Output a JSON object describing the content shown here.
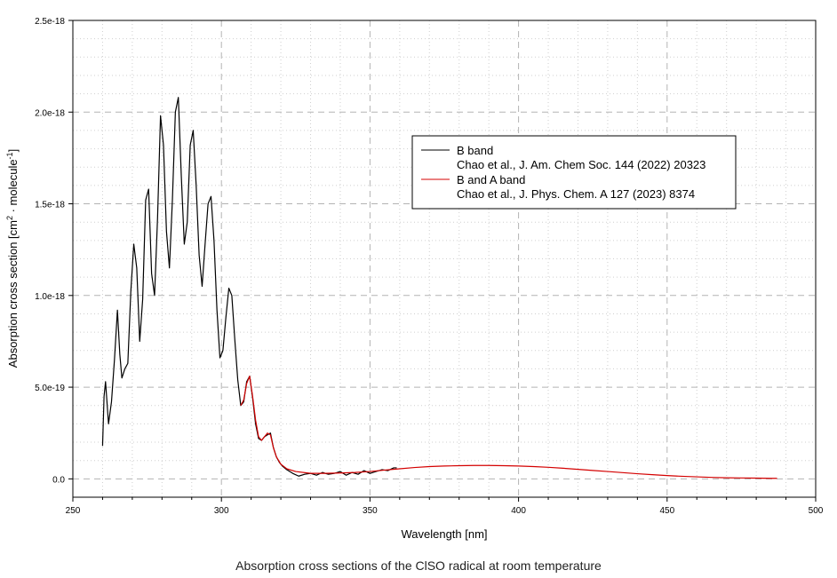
{
  "chart_data": {
    "type": "line",
    "title": "Absorption cross sections of the ClSO radical at room temperature",
    "xlabel": "Wavelength [nm]",
    "ylabel_parts": {
      "pre": "Absorption cross section [cm",
      "sup1": "2",
      "mid": " · molecule",
      "sup2": "-1",
      "post": "]"
    },
    "xlim": [
      250,
      500
    ],
    "ylim": [
      -1e-19,
      2.5e-18
    ],
    "x_ticks": [
      250,
      300,
      350,
      400,
      450,
      500
    ],
    "x_tick_labels": [
      "250",
      "300",
      "350",
      "400",
      "450",
      "500"
    ],
    "y_ticks": [
      0,
      5e-19,
      1e-18,
      1.5e-18,
      2e-18,
      2.5e-18
    ],
    "y_tick_labels": [
      "0.0",
      "5.0e-19",
      "1.0e-18",
      "1.5e-18",
      "2.0e-18",
      "2.5e-18"
    ],
    "grid": true,
    "legend_position": "upper-right",
    "series": [
      {
        "name": "B band",
        "reference": "Chao et al., J. Am. Chem Soc. 144 (2022) 20323",
        "color": "#000000",
        "x": [
          260,
          260.5,
          261,
          262,
          263,
          264,
          265,
          265.8,
          266.5,
          267.5,
          268.5,
          269.5,
          270.5,
          271.5,
          272.5,
          273.5,
          274.5,
          275.5,
          276.5,
          277.5,
          278.5,
          279.5,
          280.5,
          281.5,
          282.5,
          283.5,
          284.5,
          285.5,
          286.5,
          287.5,
          288.5,
          289.5,
          290.5,
          291.5,
          292.5,
          293.5,
          294.5,
          295.5,
          296.5,
          297.5,
          298.5,
          299.5,
          300.5,
          301.5,
          302.5,
          303.5,
          304.5,
          305.5,
          306.5,
          307.5,
          308.5,
          309.5,
          310.5,
          311.5,
          312.5,
          313.5,
          314.5,
          315.5,
          316.5,
          317.5,
          318.5,
          319.5,
          320.5,
          322,
          324,
          326,
          328,
          330,
          332,
          334,
          336,
          338,
          340,
          342,
          344,
          346,
          348,
          350,
          352,
          354,
          356,
          358,
          359
        ],
        "y": [
          1.8e-19,
          4.5e-19,
          5.3e-19,
          3e-19,
          4.2e-19,
          6.5e-19,
          9.2e-19,
          6.8e-19,
          5.5e-19,
          6e-19,
          6.3e-19,
          1.02e-18,
          1.28e-18,
          1.15e-18,
          7.5e-19,
          9.8e-19,
          1.52e-18,
          1.58e-18,
          1.12e-18,
          1e-18,
          1.42e-18,
          1.98e-18,
          1.82e-18,
          1.35e-18,
          1.15e-18,
          1.52e-18,
          2e-18,
          2.08e-18,
          1.65e-18,
          1.28e-18,
          1.4e-18,
          1.82e-18,
          1.9e-18,
          1.6e-18,
          1.22e-18,
          1.05e-18,
          1.28e-18,
          1.5e-18,
          1.54e-18,
          1.3e-18,
          9.2e-19,
          6.6e-19,
          7e-19,
          8.8e-19,
          1.04e-18,
          1e-18,
          7.6e-19,
          5.4e-19,
          4e-19,
          4.2e-19,
          5.3e-19,
          5.6e-19,
          4.4e-19,
          3e-19,
          2.2e-19,
          2.1e-19,
          2.3e-19,
          2.4e-19,
          2.5e-19,
          1.7e-19,
          1.2e-19,
          9e-20,
          7e-20,
          5e-20,
          3e-20,
          1.5e-20,
          2.5e-20,
          3e-20,
          2e-20,
          3.5e-20,
          2.5e-20,
          3e-20,
          4e-20,
          2e-20,
          3.5e-20,
          2.5e-20,
          4.5e-20,
          3e-20,
          4e-20,
          5e-20,
          4.5e-20,
          6e-20,
          6e-20
        ]
      },
      {
        "name": "B and A band",
        "reference": "Chao et al., J. Phys. Chem. A 127 (2023) 8374",
        "color": "#d40000",
        "x": [
          306.5,
          307.5,
          308.5,
          309.5,
          310.5,
          311.5,
          312.5,
          313.5,
          314.5,
          315.5,
          316.5,
          317.5,
          318.5,
          320,
          322,
          325,
          330,
          335,
          340,
          345,
          350,
          355,
          360,
          365,
          370,
          375,
          380,
          385,
          390,
          395,
          400,
          405,
          410,
          415,
          420,
          425,
          430,
          435,
          440,
          445,
          450,
          455,
          460,
          465,
          470,
          475,
          480,
          485,
          487
        ],
        "y": [
          4e-19,
          4.3e-19,
          5.2e-19,
          5.6e-19,
          4.5e-19,
          3.2e-19,
          2.3e-19,
          2.1e-19,
          2.3e-19,
          2.5e-19,
          2.4e-19,
          1.7e-19,
          1.2e-19,
          8e-20,
          5.5e-20,
          4e-20,
          3e-20,
          3e-20,
          3.2e-20,
          3.5e-20,
          4e-20,
          4.8e-20,
          5.5e-20,
          6.2e-20,
          6.7e-20,
          7e-20,
          7.2e-20,
          7.3e-20,
          7.3e-20,
          7.2e-20,
          7e-20,
          6.7e-20,
          6.3e-20,
          5.8e-20,
          5.2e-20,
          4.6e-20,
          4e-20,
          3.4e-20,
          2.8e-20,
          2.3e-20,
          1.8e-20,
          1.4e-20,
          1.1e-20,
          8e-21,
          6e-21,
          5e-21,
          4e-21,
          3e-21,
          3e-21
        ]
      }
    ]
  }
}
